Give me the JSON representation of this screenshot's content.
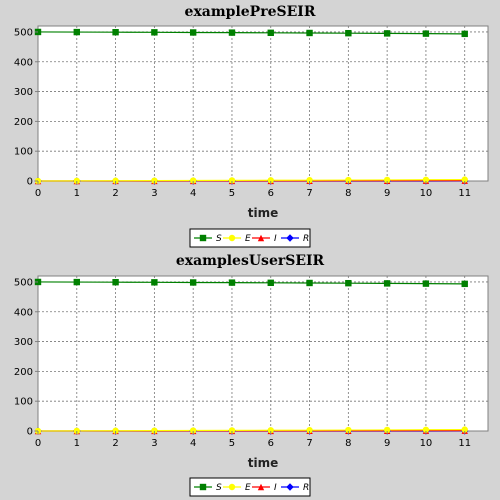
{
  "chart_data": [
    {
      "type": "line",
      "title": "examplePreSEIR",
      "xlabel": "time",
      "ylabel": "",
      "x": [
        0,
        1,
        2,
        3,
        4,
        5,
        6,
        7,
        8,
        9,
        10,
        11
      ],
      "xlim": [
        0,
        11.6
      ],
      "ylim": [
        0,
        520
      ],
      "xticks": [
        0,
        1,
        2,
        3,
        4,
        5,
        6,
        7,
        8,
        9,
        10,
        11
      ],
      "yticks": [
        0,
        100,
        200,
        300,
        400,
        500
      ],
      "grid": true,
      "legend_position": "bottom-center",
      "series": [
        {
          "name": "S",
          "color": "#008000",
          "marker": "square",
          "values": [
            500,
            499.6,
            499.2,
            498.8,
            498.3,
            497.8,
            497.2,
            496.6,
            495.9,
            495.2,
            494.4,
            493.6
          ]
        },
        {
          "name": "E",
          "color": "#ffff00",
          "marker": "circle",
          "values": [
            0,
            0.4,
            0.8,
            1.2,
            1.6,
            2,
            2.4,
            2.8,
            3.2,
            3.6,
            4.1,
            4.6
          ]
        },
        {
          "name": "I",
          "color": "#ff0000",
          "marker": "triangle",
          "values": [
            0,
            0,
            0.1,
            0.1,
            0.2,
            0.3,
            0.4,
            0.5,
            0.6,
            0.8,
            1,
            1.2
          ]
        },
        {
          "name": "R",
          "color": "#0000ff",
          "marker": "diamond",
          "values": [
            0,
            0,
            0,
            0,
            0,
            0,
            0,
            0,
            0.1,
            0.1,
            0.1,
            0.2
          ]
        }
      ]
    },
    {
      "type": "line",
      "title": "examplesUserSEIR",
      "xlabel": "time",
      "ylabel": "",
      "x": [
        0,
        1,
        2,
        3,
        4,
        5,
        6,
        7,
        8,
        9,
        10,
        11
      ],
      "xlim": [
        0,
        11.6
      ],
      "ylim": [
        0,
        520
      ],
      "xticks": [
        0,
        1,
        2,
        3,
        4,
        5,
        6,
        7,
        8,
        9,
        10,
        11
      ],
      "yticks": [
        0,
        100,
        200,
        300,
        400,
        500
      ],
      "grid": true,
      "legend_position": "bottom-center",
      "series": [
        {
          "name": "S",
          "color": "#008000",
          "marker": "square",
          "values": [
            500,
            499.6,
            499.2,
            498.8,
            498.3,
            497.8,
            497.2,
            496.6,
            495.9,
            495.2,
            494.4,
            493.6
          ]
        },
        {
          "name": "E",
          "color": "#ffff00",
          "marker": "circle",
          "values": [
            0,
            0.4,
            0.8,
            1.2,
            1.6,
            2,
            2.4,
            2.8,
            3.2,
            3.6,
            4.1,
            4.6
          ]
        },
        {
          "name": "I",
          "color": "#ff0000",
          "marker": "triangle",
          "values": [
            0,
            0,
            0.1,
            0.1,
            0.2,
            0.3,
            0.4,
            0.5,
            0.6,
            0.8,
            1,
            1.2
          ]
        },
        {
          "name": "R",
          "color": "#0000ff",
          "marker": "diamond",
          "values": [
            0,
            0,
            0,
            0,
            0,
            0,
            0,
            0,
            0.1,
            0.1,
            0.1,
            0.2
          ]
        }
      ]
    }
  ]
}
